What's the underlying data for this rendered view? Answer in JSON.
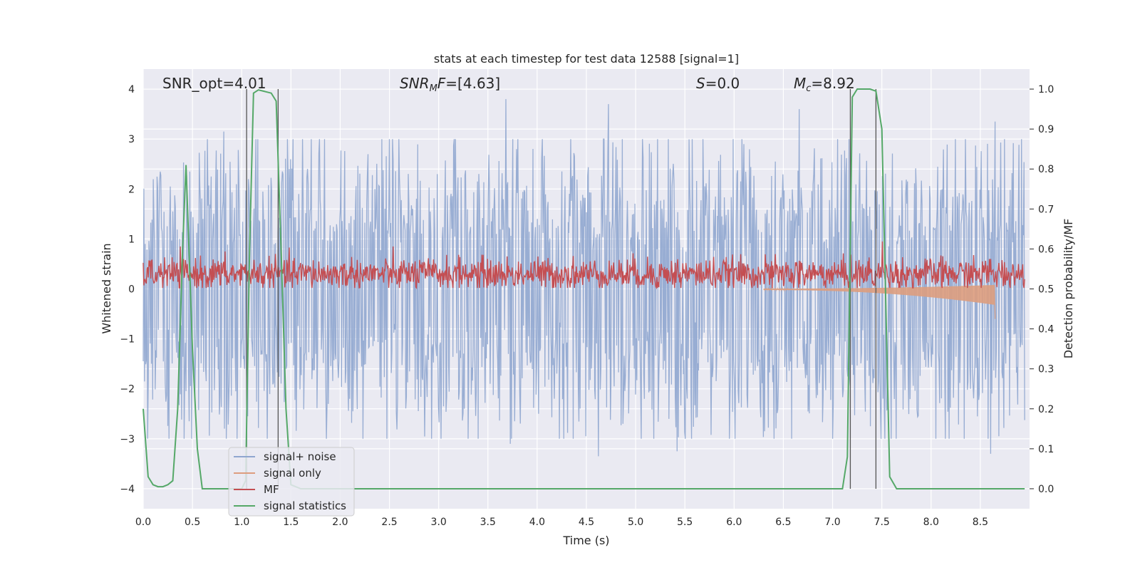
{
  "chart_data": {
    "type": "line",
    "title": "stats at each timestep for test data 12588 [signal=1]",
    "xlabel": "Time (s)",
    "ylabel_left": "Whitened strain",
    "ylabel_right": "Detection probability/MF",
    "xlim": [
      0,
      9.0
    ],
    "ylim_left": [
      -4.4,
      4.4
    ],
    "ylim_right": [
      -0.05,
      1.05
    ],
    "x_ticks": [
      "0.0",
      "0.5",
      "1.0",
      "1.5",
      "2.0",
      "2.5",
      "3.0",
      "3.5",
      "4.0",
      "4.5",
      "5.0",
      "5.5",
      "6.0",
      "6.5",
      "7.0",
      "7.5",
      "8.0",
      "8.5"
    ],
    "y_ticks_left": [
      "−4",
      "−3",
      "−2",
      "−1",
      "0",
      "1",
      "2",
      "3",
      "4"
    ],
    "y_ticks_right": [
      "0.0",
      "0.1",
      "0.2",
      "0.3",
      "0.4",
      "0.5",
      "0.6",
      "0.7",
      "0.8",
      "0.9",
      "1.0"
    ],
    "grid": true,
    "legend_position": "lower-left",
    "annotations": {
      "snr_opt": "SNR_opt=4.01",
      "snr_mf": "SNR_MF=[4.63]",
      "s": "S=0.0",
      "mc": "M_c=8.92"
    },
    "detection_markers_s": [
      1.05,
      1.37,
      7.18,
      7.44
    ],
    "series": [
      {
        "name": "signal+ noise",
        "axis": "left",
        "color": "#8fa6cf",
        "description_range": [
          -3.3,
          3.8
        ],
        "peaks": [
          {
            "x": 0.82,
            "y": 3.15
          },
          {
            "x": 3.7,
            "y": 3.8
          },
          {
            "x": 4.75,
            "y": 3.7
          },
          {
            "x": 6.7,
            "y": 3.6
          },
          {
            "x": 6.62,
            "y": -3.0
          },
          {
            "x": 8.7,
            "y": 3.35
          },
          {
            "x": 4.65,
            "y": -3.35
          },
          {
            "x": 5.45,
            "y": -3.25
          },
          {
            "x": 8.65,
            "y": -3.3
          },
          {
            "x": 3.75,
            "y": -3.1
          }
        ]
      },
      {
        "name": "signal only",
        "axis": "left",
        "color": "#dd9d7e",
        "onset_x": 6.3,
        "end_x": 8.65,
        "end_value": -0.6
      },
      {
        "name": "MF",
        "axis": "left",
        "color": "#c44e52",
        "band": [
          0.05,
          0.75
        ],
        "peaks": [
          {
            "x": 7.55,
            "y": 0.95
          },
          {
            "x": 8.65,
            "y": 0.6
          }
        ]
      },
      {
        "name": "signal statistics",
        "axis": "right",
        "color": "#55a868",
        "x": [
          0.0,
          0.05,
          0.1,
          0.15,
          0.2,
          0.25,
          0.3,
          0.35,
          0.4,
          0.435,
          0.5,
          0.55,
          0.6,
          1.0,
          1.04,
          1.08,
          1.12,
          1.17,
          1.22,
          1.3,
          1.35,
          1.4,
          1.45,
          1.5,
          1.6,
          1.7,
          2.0,
          7.1,
          7.15,
          7.2,
          7.25,
          7.3,
          7.38,
          7.44,
          7.5,
          7.58,
          7.65,
          8.0,
          8.95
        ],
        "y": [
          0.2,
          0.03,
          0.01,
          0.005,
          0.005,
          0.01,
          0.02,
          0.2,
          0.6,
          0.81,
          0.35,
          0.1,
          0.0,
          0.0,
          0.02,
          0.6,
          0.99,
          0.998,
          0.995,
          0.99,
          0.97,
          0.6,
          0.2,
          0.01,
          0.0,
          0.0,
          0.0,
          0.0,
          0.08,
          0.98,
          1.0,
          1.0,
          1.0,
          0.995,
          0.9,
          0.03,
          0.0,
          0.0,
          0.0
        ]
      }
    ]
  }
}
